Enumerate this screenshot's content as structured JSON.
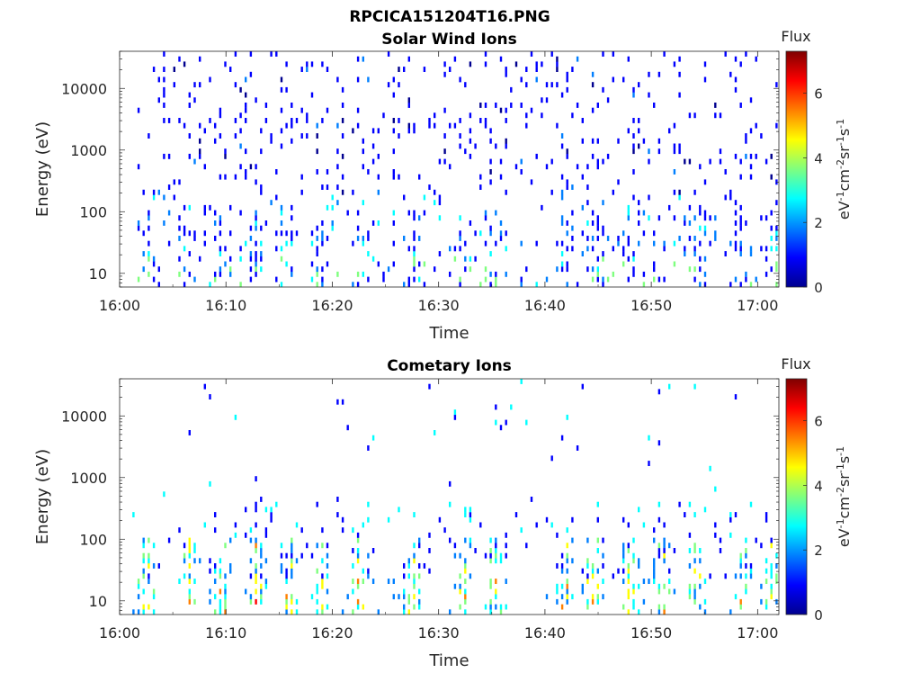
{
  "figure": {
    "title": "RPCICA151204T16.PNG"
  },
  "chart_data": [
    {
      "type": "heatmap",
      "title": "Solar Wind Ions",
      "xlabel": "Time",
      "ylabel": "Energy (eV)",
      "x_tick_labels": [
        "16:00",
        "16:10",
        "16:20",
        "16:30",
        "16:40",
        "16:50",
        "17:00"
      ],
      "xlim_minutes": [
        0,
        62
      ],
      "y_tick_labels": [
        "10",
        "100",
        "1000",
        "10000"
      ],
      "yscale": "log",
      "ylim": [
        6,
        40000
      ],
      "colorbar": {
        "label": "Flux",
        "unit": "eV-1cm-2sr-1s-1",
        "range": [
          0,
          7.3
        ],
        "tick_labels": [
          "0",
          "2",
          "4",
          "6"
        ]
      },
      "colors": [
        "#00008f",
        "#0000ff",
        "#007fff",
        "#00ffff",
        "#7fff7f",
        "#ffff00",
        "#ff7f00",
        "#ff0000",
        "#7f0000"
      ]
    },
    {
      "type": "heatmap",
      "title": "Cometary Ions",
      "xlabel": "Time",
      "ylabel": "Energy (eV)",
      "x_tick_labels": [
        "16:00",
        "16:10",
        "16:20",
        "16:30",
        "16:40",
        "16:50",
        "17:00"
      ],
      "xlim_minutes": [
        0,
        62
      ],
      "y_tick_labels": [
        "10",
        "100",
        "1000",
        "10000"
      ],
      "yscale": "log",
      "ylim": [
        6,
        40000
      ],
      "colorbar": {
        "label": "Flux",
        "unit": "eV-1cm-2sr-1s-1",
        "range": [
          0,
          7.3
        ],
        "tick_labels": [
          "0",
          "2",
          "4",
          "6"
        ]
      },
      "colors": [
        "#00008f",
        "#0000ff",
        "#007fff",
        "#00ffff",
        "#7fff7f",
        "#ffff00",
        "#ff7f00",
        "#ff0000",
        "#7f0000"
      ]
    }
  ]
}
